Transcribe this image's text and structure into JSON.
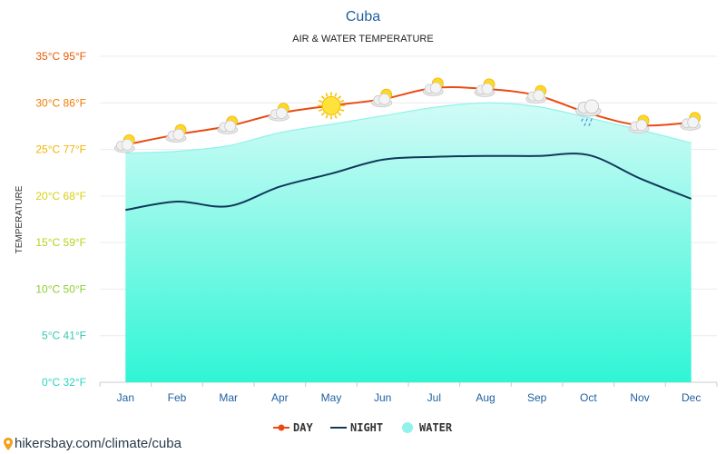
{
  "chart_data": {
    "type": "line",
    "title": "Cuba",
    "subtitle": "AIR & WATER TEMPERATURE",
    "ylabel": "TEMPERATURE",
    "ylim": [
      0,
      35
    ],
    "yticks": [
      {
        "value": 0,
        "label": "0°C 32°F",
        "color": "#2ad4c4"
      },
      {
        "value": 5,
        "label": "5°C 41°F",
        "color": "#35c9b0"
      },
      {
        "value": 10,
        "label": "10°C 50°F",
        "color": "#8ccf2e"
      },
      {
        "value": 15,
        "label": "15°C 59°F",
        "color": "#b7d21a"
      },
      {
        "value": 20,
        "label": "20°C 68°F",
        "color": "#d9cf12"
      },
      {
        "value": 25,
        "label": "25°C 77°F",
        "color": "#f2b400"
      },
      {
        "value": 30,
        "label": "30°C 86°F",
        "color": "#f07c00"
      },
      {
        "value": 35,
        "label": "35°C 95°F",
        "color": "#ea5a00"
      }
    ],
    "categories": [
      "Jan",
      "Feb",
      "Mar",
      "Apr",
      "May",
      "Jun",
      "Jul",
      "Aug",
      "Sep",
      "Oct",
      "Nov",
      "Dec"
    ],
    "series": [
      {
        "name": "DAY",
        "color": "#ea4a12",
        "values": [
          25.5,
          26.6,
          27.5,
          28.9,
          29.7,
          30.4,
          31.6,
          31.5,
          30.8,
          28.9,
          27.6,
          27.9
        ]
      },
      {
        "name": "NIGHT",
        "color": "#12385a",
        "values": [
          18.5,
          19.4,
          18.9,
          21.0,
          22.4,
          23.9,
          24.2,
          24.3,
          24.3,
          24.4,
          21.9,
          19.7
        ]
      },
      {
        "name": "WATER",
        "color": "#8ff3ea",
        "values": [
          24.6,
          24.8,
          25.4,
          26.8,
          27.7,
          28.6,
          29.5,
          30.0,
          29.6,
          28.4,
          27.1,
          25.7
        ]
      }
    ],
    "weather_icons": [
      "partly-cloudy-icon",
      "partly-cloudy-icon",
      "partly-cloudy-icon",
      "partly-cloudy-icon",
      "sun-icon",
      "partly-cloudy-icon",
      "partly-cloudy-icon",
      "partly-cloudy-icon",
      "partly-cloudy-icon",
      "rain-cloud-icon",
      "partly-cloudy-icon",
      "partly-cloudy-icon"
    ],
    "grid": true,
    "legend": "bottom-center"
  },
  "source": "hikersbay.com/climate/cuba"
}
